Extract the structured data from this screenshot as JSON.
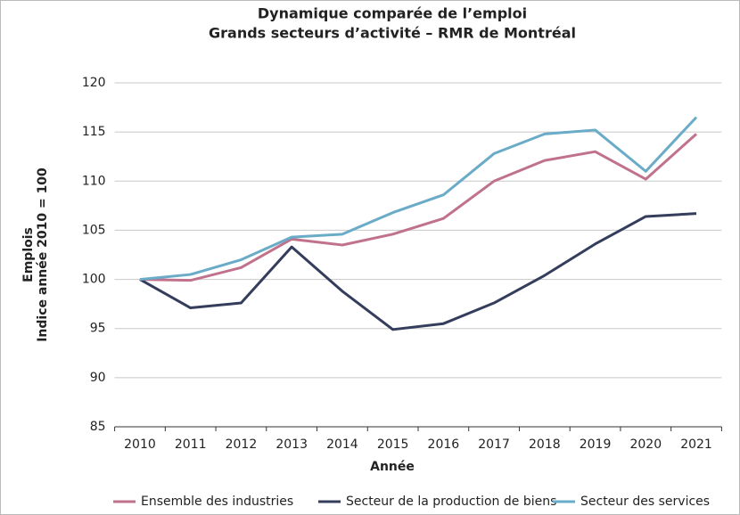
{
  "chart_data": {
    "type": "line",
    "title": [
      "Dynamique comparée de l’emploi",
      "Grands secteurs d’activité – RMR de Montréal"
    ],
    "x_label": "Année",
    "y_label": [
      "Emplois",
      "Indice année 2010 = 100"
    ],
    "categories": [
      "2010",
      "2011",
      "2012",
      "2013",
      "2014",
      "2015",
      "2016",
      "2017",
      "2018",
      "2019",
      "2020",
      "2021"
    ],
    "series": [
      {
        "name": "Ensemble des industries",
        "color": "#c0728d",
        "values": [
          100,
          99.9,
          101.2,
          104.1,
          103.5,
          104.6,
          106.2,
          110.0,
          112.1,
          113.0,
          110.2,
          114.8
        ]
      },
      {
        "name": "Secteur de la production de biens",
        "color": "#343d5c",
        "values": [
          100,
          97.1,
          97.6,
          103.3,
          98.8,
          94.9,
          95.5,
          97.6,
          100.4,
          103.6,
          106.4,
          106.7
        ]
      },
      {
        "name": "Secteur des services",
        "color": "#6aabc8",
        "values": [
          100,
          100.5,
          102.0,
          104.3,
          104.6,
          106.8,
          108.6,
          112.8,
          114.8,
          115.2,
          111.0,
          116.5
        ]
      }
    ],
    "ylim": [
      85,
      120
    ],
    "yticks": [
      85,
      90,
      95,
      100,
      105,
      110,
      115,
      120
    ],
    "grid": true,
    "legend": "bottom"
  }
}
